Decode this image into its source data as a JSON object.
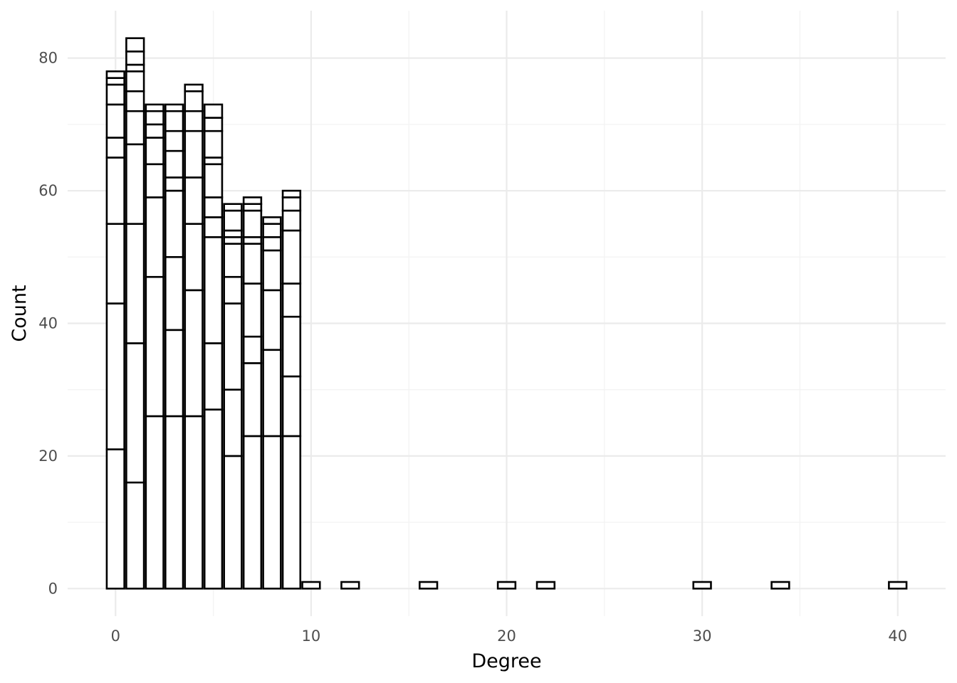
{
  "chart_data": {
    "type": "bar",
    "title": "",
    "xlabel": "Degree",
    "ylabel": "Count",
    "xlim": [
      -2.45,
      42.45
    ],
    "ylim": [
      -4.15,
      87.15
    ],
    "x_ticks": [
      0,
      10,
      20,
      30,
      40
    ],
    "y_ticks": [
      0,
      20,
      40,
      60,
      80
    ],
    "x_minor": [
      5,
      15,
      25,
      35
    ],
    "y_minor": [
      10,
      30,
      50,
      70
    ],
    "grid": true,
    "bar_width": 0.9,
    "fill_color": "#ffffff",
    "edge_color": "#000000",
    "bars": [
      {
        "x": 0,
        "boundaries": [
          0,
          21,
          43,
          55,
          65,
          68,
          73,
          76,
          77,
          78
        ]
      },
      {
        "x": 1,
        "boundaries": [
          0,
          16,
          37,
          55,
          67,
          72,
          75,
          78,
          79,
          81,
          83
        ]
      },
      {
        "x": 2,
        "boundaries": [
          0,
          26,
          47,
          59,
          64,
          68,
          70,
          72,
          73
        ]
      },
      {
        "x": 3,
        "boundaries": [
          0,
          26,
          39,
          50,
          60,
          62,
          66,
          69,
          72,
          73
        ]
      },
      {
        "x": 4,
        "boundaries": [
          0,
          26,
          45,
          55,
          62,
          69,
          72,
          75,
          76
        ]
      },
      {
        "x": 5,
        "boundaries": [
          0,
          27,
          37,
          53,
          56,
          59,
          64,
          65,
          69,
          71,
          73
        ]
      },
      {
        "x": 6,
        "boundaries": [
          0,
          20,
          30,
          43,
          47,
          52,
          53,
          54,
          57,
          58
        ]
      },
      {
        "x": 7,
        "boundaries": [
          0,
          23,
          34,
          38,
          46,
          52,
          53,
          57,
          58,
          59
        ]
      },
      {
        "x": 8,
        "boundaries": [
          0,
          23,
          36,
          45,
          51,
          53,
          55,
          56
        ]
      },
      {
        "x": 9,
        "boundaries": [
          0,
          23,
          32,
          41,
          46,
          54,
          57,
          59,
          60
        ]
      },
      {
        "x": 10,
        "boundaries": [
          0,
          1
        ]
      },
      {
        "x": 12,
        "boundaries": [
          0,
          1
        ]
      },
      {
        "x": 16,
        "boundaries": [
          0,
          1
        ]
      },
      {
        "x": 20,
        "boundaries": [
          0,
          1
        ]
      },
      {
        "x": 22,
        "boundaries": [
          0,
          1
        ]
      },
      {
        "x": 30,
        "boundaries": [
          0,
          1
        ]
      },
      {
        "x": 34,
        "boundaries": [
          0,
          1
        ]
      },
      {
        "x": 40,
        "boundaries": [
          0,
          1
        ]
      }
    ]
  }
}
